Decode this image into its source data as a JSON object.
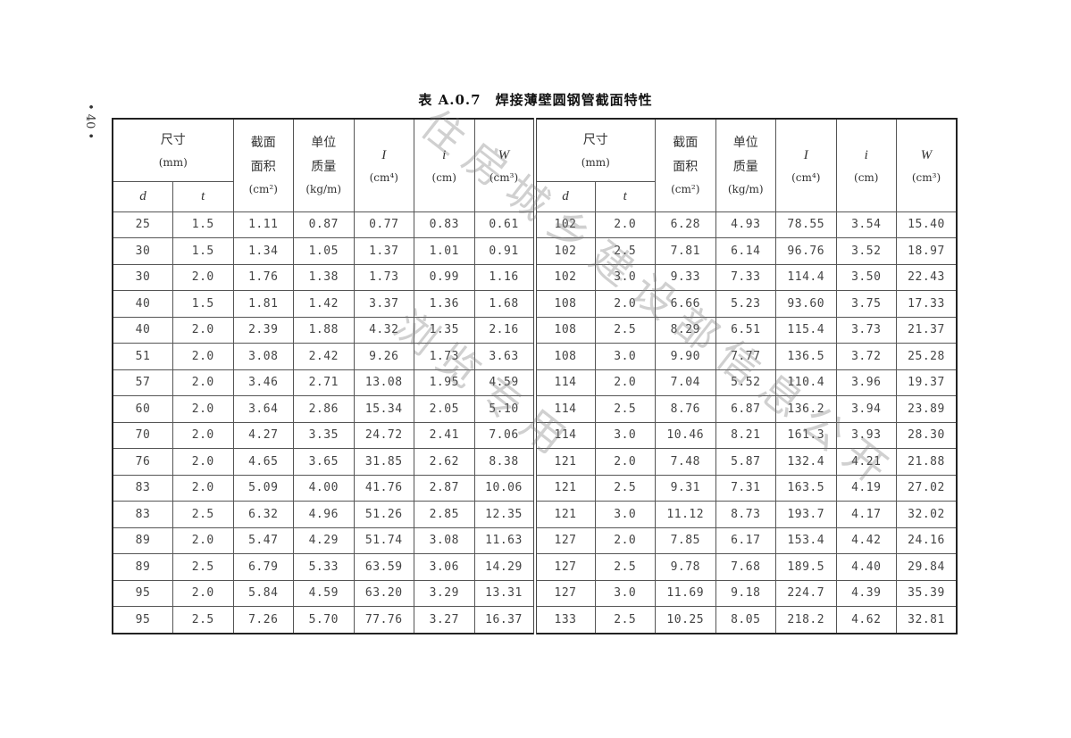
{
  "page_number": "• 40 •",
  "title": "表 A.0.7　焊接薄壁圆钢管截面特性",
  "headers": {
    "size": "尺寸",
    "size_unit": "(mm)",
    "d": "d",
    "t": "t",
    "area_1": "截面",
    "area_2": "面积",
    "area_unit": "(cm²)",
    "mass_1": "单位",
    "mass_2": "质量",
    "mass_unit": "(kg/m)",
    "I": "I",
    "I_unit": "(cm⁴)",
    "i": "i",
    "i_unit": "(cm)",
    "W": "W",
    "W_unit": "(cm³)"
  },
  "rows": [
    [
      [
        "25",
        "1.5",
        "1.11",
        "0.87",
        "0.77",
        "0.83",
        "0.61"
      ],
      [
        "102",
        "2.0",
        "6.28",
        "4.93",
        "78.55",
        "3.54",
        "15.40"
      ]
    ],
    [
      [
        "30",
        "1.5",
        "1.34",
        "1.05",
        "1.37",
        "1.01",
        "0.91"
      ],
      [
        "102",
        "2.5",
        "7.81",
        "6.14",
        "96.76",
        "3.52",
        "18.97"
      ]
    ],
    [
      [
        "30",
        "2.0",
        "1.76",
        "1.38",
        "1.73",
        "0.99",
        "1.16"
      ],
      [
        "102",
        "3.0",
        "9.33",
        "7.33",
        "114.4",
        "3.50",
        "22.43"
      ]
    ],
    [
      [
        "40",
        "1.5",
        "1.81",
        "1.42",
        "3.37",
        "1.36",
        "1.68"
      ],
      [
        "108",
        "2.0",
        "6.66",
        "5.23",
        "93.60",
        "3.75",
        "17.33"
      ]
    ],
    [
      [
        "40",
        "2.0",
        "2.39",
        "1.88",
        "4.32",
        "1.35",
        "2.16"
      ],
      [
        "108",
        "2.5",
        "8.29",
        "6.51",
        "115.4",
        "3.73",
        "21.37"
      ]
    ],
    [
      [
        "51",
        "2.0",
        "3.08",
        "2.42",
        "9.26",
        "1.73",
        "3.63"
      ],
      [
        "108",
        "3.0",
        "9.90",
        "7.77",
        "136.5",
        "3.72",
        "25.28"
      ]
    ],
    [
      [
        "57",
        "2.0",
        "3.46",
        "2.71",
        "13.08",
        "1.95",
        "4.59"
      ],
      [
        "114",
        "2.0",
        "7.04",
        "5.52",
        "110.4",
        "3.96",
        "19.37"
      ]
    ],
    [
      [
        "60",
        "2.0",
        "3.64",
        "2.86",
        "15.34",
        "2.05",
        "5.10"
      ],
      [
        "114",
        "2.5",
        "8.76",
        "6.87",
        "136.2",
        "3.94",
        "23.89"
      ]
    ],
    [
      [
        "70",
        "2.0",
        "4.27",
        "3.35",
        "24.72",
        "2.41",
        "7.06"
      ],
      [
        "114",
        "3.0",
        "10.46",
        "8.21",
        "161.3",
        "3.93",
        "28.30"
      ]
    ],
    [
      [
        "76",
        "2.0",
        "4.65",
        "3.65",
        "31.85",
        "2.62",
        "8.38"
      ],
      [
        "121",
        "2.0",
        "7.48",
        "5.87",
        "132.4",
        "4.21",
        "21.88"
      ]
    ],
    [
      [
        "83",
        "2.0",
        "5.09",
        "4.00",
        "41.76",
        "2.87",
        "10.06"
      ],
      [
        "121",
        "2.5",
        "9.31",
        "7.31",
        "163.5",
        "4.19",
        "27.02"
      ]
    ],
    [
      [
        "83",
        "2.5",
        "6.32",
        "4.96",
        "51.26",
        "2.85",
        "12.35"
      ],
      [
        "121",
        "3.0",
        "11.12",
        "8.73",
        "193.7",
        "4.17",
        "32.02"
      ]
    ],
    [
      [
        "89",
        "2.0",
        "5.47",
        "4.29",
        "51.74",
        "3.08",
        "11.63"
      ],
      [
        "127",
        "2.0",
        "7.85",
        "6.17",
        "153.4",
        "4.42",
        "24.16"
      ]
    ],
    [
      [
        "89",
        "2.5",
        "6.79",
        "5.33",
        "63.59",
        "3.06",
        "14.29"
      ],
      [
        "127",
        "2.5",
        "9.78",
        "7.68",
        "189.5",
        "4.40",
        "29.84"
      ]
    ],
    [
      [
        "95",
        "2.0",
        "5.84",
        "4.59",
        "63.20",
        "3.29",
        "13.31"
      ],
      [
        "127",
        "3.0",
        "11.69",
        "9.18",
        "224.7",
        "4.39",
        "35.39"
      ]
    ],
    [
      [
        "95",
        "2.5",
        "7.26",
        "5.70",
        "77.76",
        "3.27",
        "16.37"
      ],
      [
        "133",
        "2.5",
        "10.25",
        "8.05",
        "218.2",
        "4.62",
        "32.81"
      ]
    ]
  ],
  "watermark": {
    "line1": "住房城乡建设部信息公开",
    "line2": "浏览专用"
  }
}
